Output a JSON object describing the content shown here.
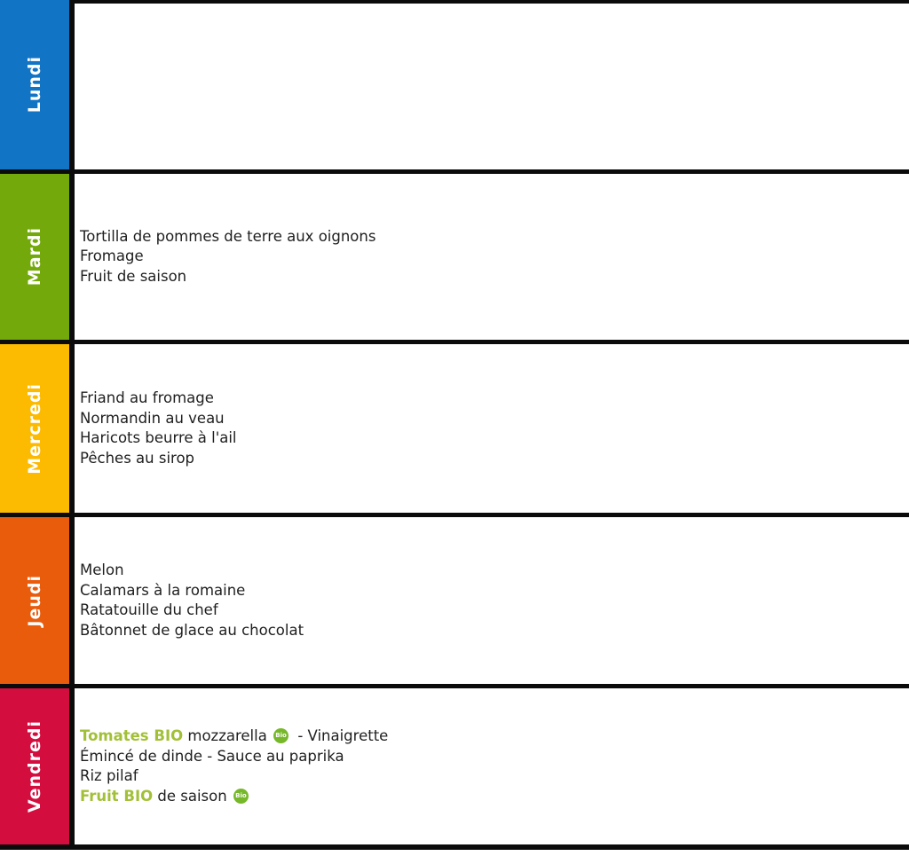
{
  "table": {
    "bio_badge_label": "Bio",
    "bio_text_color": "#a2c037",
    "bio_badge_color": "#76b82a",
    "border_color": "#0b0b0b",
    "days": [
      {
        "name": "Lundi",
        "color": "#1274c4",
        "lines": []
      },
      {
        "name": "Mardi",
        "color": "#73a90b",
        "lines": [
          [
            {
              "t": "Tortilla de pommes de terre aux oignons"
            }
          ],
          [
            {
              "t": "Fromage"
            }
          ],
          [
            {
              "t": "Fruit de saison"
            }
          ]
        ]
      },
      {
        "name": "Mercredi",
        "color": "#fcba00",
        "lines": [
          [
            {
              "t": "Friand au fromage"
            }
          ],
          [
            {
              "t": "Normandin au veau"
            }
          ],
          [
            {
              "t": "Haricots beurre à l'ail"
            }
          ],
          [
            {
              "t": "Pêches au sirop"
            }
          ]
        ]
      },
      {
        "name": "Jeudi",
        "color": "#e95c0c",
        "lines": [
          [
            {
              "t": "Melon"
            }
          ],
          [
            {
              "t": "Calamars à la romaine"
            }
          ],
          [
            {
              "t": "Ratatouille du chef"
            }
          ],
          [
            {
              "t": "Bâtonnet de glace au chocolat"
            }
          ]
        ]
      },
      {
        "name": "Vendredi",
        "color": "#d40d3f",
        "lines": [
          [
            {
              "t": "Tomates BIO",
              "bio": true
            },
            {
              "t": " mozzarella "
            },
            {
              "badge": true
            },
            {
              "t": " - Vinaigrette"
            }
          ],
          [
            {
              "t": "Émincé de dinde - Sauce au paprika"
            }
          ],
          [
            {
              "t": "Riz pilaf"
            }
          ],
          [
            {
              "t": "Fruit BIO",
              "bio": true
            },
            {
              "t": " de saison "
            },
            {
              "badge": true
            }
          ]
        ]
      }
    ]
  }
}
